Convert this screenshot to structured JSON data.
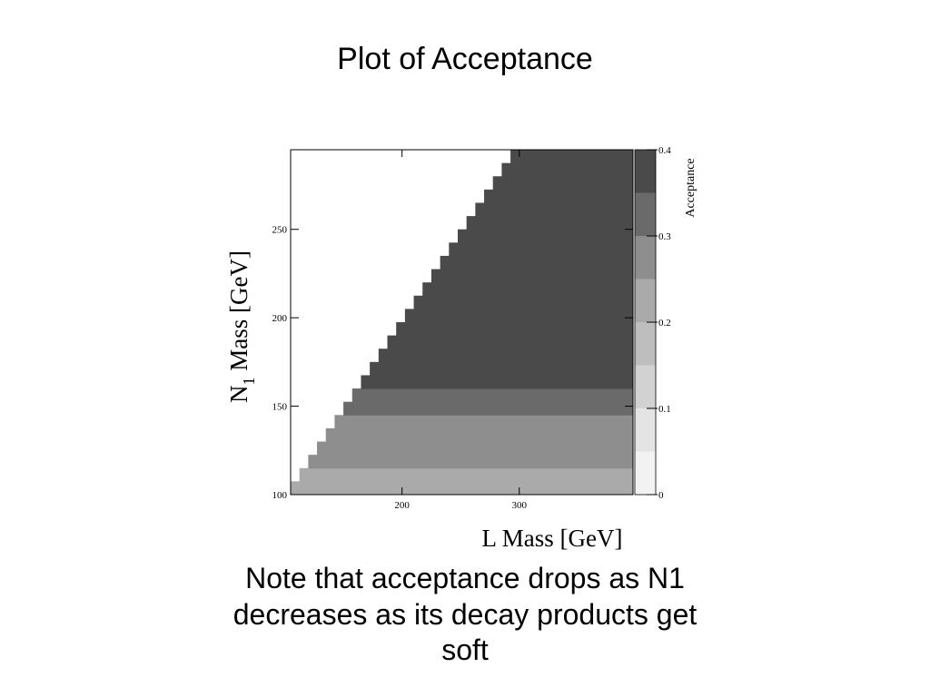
{
  "chart_data": {
    "type": "heatmap",
    "title": "Plot of Acceptance",
    "xlabel": "L Mass [GeV]",
    "ylabel_parts": [
      "N",
      "1",
      " Mass [GeV]"
    ],
    "xlim": [
      105,
      397
    ],
    "ylim": [
      100,
      295
    ],
    "xticks": [
      200,
      300
    ],
    "yticks": [
      100,
      150,
      200,
      250
    ],
    "y_bins": [
      100,
      107.5,
      115,
      122.5,
      130,
      137.5,
      145,
      152.5,
      160,
      167.5,
      175,
      182.5,
      190,
      197.5,
      205,
      212.5,
      220,
      227.5,
      235,
      242.5,
      250,
      257.5,
      265,
      272.5,
      280,
      287.5,
      295
    ],
    "x_start": [
      105,
      112.5,
      120,
      127.5,
      135,
      142.5,
      150,
      157.5,
      165,
      172.5,
      180,
      187.5,
      195,
      202.5,
      210,
      217.5,
      225,
      232.5,
      240,
      247.5,
      255,
      262.5,
      270,
      277.5,
      285,
      292.5
    ],
    "values": [
      0.22,
      0.22,
      0.26,
      0.26,
      0.28,
      0.28,
      0.32,
      0.32,
      0.37,
      0.37,
      0.37,
      0.37,
      0.37,
      0.37,
      0.37,
      0.37,
      0.37,
      0.37,
      0.37,
      0.37,
      0.37,
      0.37,
      0.37,
      0.37,
      0.37,
      0.37
    ],
    "colorbar": {
      "label": "Acceptance",
      "bounds": [
        0,
        0.05,
        0.1,
        0.15,
        0.2,
        0.25,
        0.3,
        0.35,
        0.4
      ],
      "colors": [
        "#f2f2f2",
        "#e4e4e4",
        "#d2d2d2",
        "#bebebe",
        "#aaaaaa",
        "#8e8e8e",
        "#6a6a6a",
        "#4a4a4a"
      ],
      "ticks": [
        0,
        0.1,
        0.2,
        0.3,
        0.4
      ]
    },
    "note_lines": [
      "Note that acceptance drops as N1",
      "decreases as its decay  products get",
      "soft"
    ]
  }
}
